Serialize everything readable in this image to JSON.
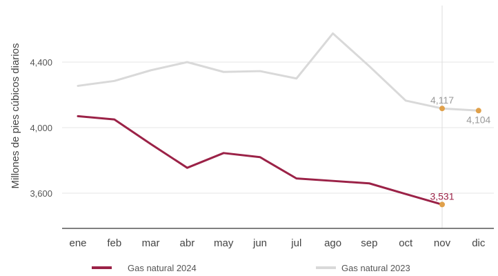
{
  "chart_data": {
    "type": "line",
    "ylabel": "Millones de pies cúbicos diarios",
    "categories": [
      "ene",
      "feb",
      "mar",
      "abr",
      "may",
      "jun",
      "jul",
      "ago",
      "sep",
      "oct",
      "nov",
      "dic"
    ],
    "y_ticks": [
      "3,600",
      "4,000",
      "4,400"
    ],
    "y_tick_values": [
      3600,
      4000,
      4400
    ],
    "ylim": [
      3440,
      4780
    ],
    "grid": "horizontal",
    "legend_position": "bottom",
    "highlight_category": "nov",
    "series": [
      {
        "name": "Gas natural 2024",
        "color": "#9b2247",
        "values": [
          4070,
          4050,
          3900,
          3755,
          3845,
          3820,
          3690,
          3675,
          3660,
          3595,
          3531,
          null
        ]
      },
      {
        "name": "Gas natural 2023",
        "color": "#d9d9d9",
        "values": [
          4255,
          4285,
          4350,
          4400,
          4340,
          4345,
          4300,
          4575,
          4375,
          4165,
          4117,
          4104
        ]
      }
    ],
    "annotations": [
      {
        "series": 0,
        "category": "nov",
        "label": "3,531",
        "color": "#9b2247"
      },
      {
        "series": 1,
        "category": "nov",
        "label": "4,117",
        "color": "#999999"
      },
      {
        "series": 1,
        "category": "dic",
        "label": "4,104",
        "color": "#999999"
      }
    ],
    "marker_color": "#e0a04a"
  }
}
